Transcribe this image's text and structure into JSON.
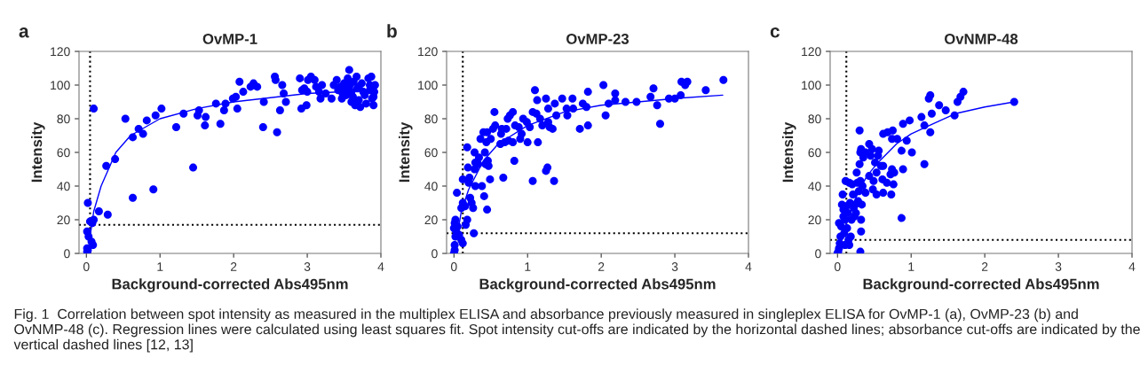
{
  "chart_data": [
    {
      "type": "scatter",
      "title": "OvMP-1",
      "xlabel": "Background-corrected Abs495nm",
      "ylabel": "Intensity",
      "annotations": [
        "a",
        "Fig. 1  Correlation between spot intensity as measured in the multiplex ELISA and absorbance previously measured in singleplex ELISA for OvMP-1 (a), OvMP-23 (b) and OvNMP-48 (c). Regression lines were calculated using least squares fit. Spot intensity cut-offs are indicated by the horizontal dashed lines; absorbance cut-offs are indicated by the vertical dashed lines [12, 13]"
      ],
      "xlim": [
        -0.1,
        4
      ],
      "ylim": [
        0,
        120
      ],
      "xticks": [
        0,
        1,
        2,
        3,
        4
      ],
      "yticks": [
        0,
        20,
        40,
        60,
        80,
        100,
        120
      ],
      "grid": false,
      "legend": false,
      "marker": "circle",
      "ref_lines": [
        {
          "axis": "x",
          "value": 0.05,
          "color": "#000000",
          "line_style": "dotted"
        },
        {
          "axis": "y",
          "value": 17,
          "color": "#000000",
          "line_style": "dotted"
        }
      ],
      "series": [
        {
          "color": "#0000ff",
          "x": [
            0.02,
            0.01,
            0.03,
            0.05,
            0.08,
            0.1,
            0.1,
            0.07,
            0.09,
            0.01,
            0.01,
            0.02,
            0.17,
            0.27,
            0.29,
            0.39,
            0.53,
            0.63,
            0.63,
            0.71,
            0.77,
            0.82,
            0.91,
            0.94,
            1.02,
            1.22,
            1.32,
            1.45,
            1.51,
            1.53,
            1.61,
            1.62,
            1.76,
            1.82,
            1.87,
            1.89,
            1.99,
            2.03,
            2.05,
            2.08,
            2.13,
            2.23,
            2.27,
            2.32,
            2.4,
            2.41,
            2.56,
            2.57,
            2.59,
            2.63,
            2.66,
            2.68,
            2.71,
            2.9,
            2.92,
            2.93,
            2.96,
            2.99,
            3.0,
            3.01,
            3.05,
            3.1,
            3.12,
            3.16,
            3.18,
            3.2,
            3.25,
            3.33,
            3.36,
            3.4,
            3.42,
            3.45,
            3.48,
            3.5,
            3.52,
            3.55,
            3.57,
            3.58,
            3.6,
            3.62,
            3.63,
            3.65,
            3.67,
            3.7,
            3.72,
            3.74,
            3.76,
            3.78,
            3.8,
            3.83,
            3.85,
            3.87,
            3.88,
            3.9,
            3.91,
            3.92,
            3.9,
            3.47,
            3.53,
            3.6,
            3.68,
            3.7,
            3.85
          ],
          "values": [
            30,
            13,
            10,
            19,
            18,
            20,
            86,
            7,
            5,
            3,
            1,
            2,
            25,
            52,
            23,
            56,
            80,
            69,
            33,
            74,
            71,
            79,
            38,
            82,
            86,
            75,
            83,
            51,
            82,
            85,
            76,
            81,
            89,
            77,
            85,
            89,
            92,
            93,
            86,
            102,
            96,
            99,
            101,
            99,
            75,
            90,
            105,
            103,
            72,
            85,
            100,
            95,
            90,
            104,
            86,
            97,
            98,
            88,
            96,
            103,
            105,
            103,
            99,
            96,
            92,
            100,
            95,
            92,
            100,
            103,
            97,
            99,
            95,
            101,
            98,
            104,
            109,
            100,
            96,
            93,
            102,
            88,
            105,
            99,
            87,
            101,
            96,
            94,
            89,
            104,
            97,
            105,
            92,
            88,
            96,
            100,
            93,
            92,
            94,
            90,
            98,
            91,
            100
          ]
        },
        {
          "type": "line",
          "color": "#0000ff",
          "marker": "none",
          "line_style": "solid",
          "x": [
            0.05,
            0.1,
            0.2,
            0.4,
            0.6,
            1,
            1.5,
            2,
            3,
            3.9
          ],
          "values": [
            10,
            25,
            40,
            60,
            70,
            80,
            86,
            90,
            95,
            97
          ]
        }
      ]
    },
    {
      "type": "scatter",
      "title": "OvMP-23",
      "xlabel": "Background-corrected Abs495nm",
      "ylabel": "Intensity",
      "annotations": [
        "b"
      ],
      "xlim": [
        -0.1,
        4
      ],
      "ylim": [
        0,
        120
      ],
      "xticks": [
        0,
        1,
        2,
        3,
        4
      ],
      "yticks": [
        0,
        20,
        40,
        60,
        80,
        100,
        120
      ],
      "grid": false,
      "legend": false,
      "marker": "circle",
      "ref_lines": [
        {
          "axis": "x",
          "value": 0.12,
          "color": "#000000",
          "line_style": "dotted"
        },
        {
          "axis": "y",
          "value": 12,
          "color": "#000000",
          "line_style": "dotted"
        }
      ],
      "series": [
        {
          "color": "#0000ff",
          "x": [
            0,
            0.01,
            0.01,
            0.02,
            0,
            0.01,
            0.02,
            0.03,
            0.05,
            0.07,
            0.1,
            0.12,
            0.04,
            0.1,
            0.12,
            0.12,
            0.15,
            0.16,
            0.18,
            0.18,
            0.19,
            0.2,
            0.21,
            0.22,
            0.24,
            0.26,
            0.27,
            0.28,
            0.28,
            0.29,
            0.29,
            0.33,
            0.34,
            0.36,
            0.38,
            0.4,
            0.41,
            0.42,
            0.43,
            0.44,
            0.45,
            0.45,
            0.46,
            0.47,
            0.49,
            0.5,
            0.53,
            0.55,
            0.56,
            0.63,
            0.64,
            0.65,
            0.67,
            0.69,
            0.71,
            0.73,
            0.74,
            0.76,
            0.8,
            0.8,
            0.82,
            0.83,
            0.88,
            0.9,
            0.92,
            0.94,
            0.99,
            1.0,
            1.03,
            1.07,
            1.07,
            1.1,
            1.12,
            1.13,
            1.14,
            1.17,
            1.2,
            1.25,
            1.25,
            1.27,
            1.28,
            1.28,
            1.3,
            1.34,
            1.36,
            1.37,
            1.39,
            1.47,
            1.53,
            1.54,
            1.61,
            1.62,
            1.71,
            1.75,
            1.8,
            1.82,
            1.82,
            2.03,
            2.06,
            2.1,
            2.19,
            2.19,
            2.33,
            2.48,
            2.67,
            2.71,
            2.76,
            2.8,
            2.92,
            3.0,
            3.08,
            3.09,
            3.14,
            3.17,
            3.42,
            3.66
          ],
          "values": [
            0,
            2,
            5,
            10,
            15,
            18,
            20,
            13,
            16,
            11,
            8,
            6,
            36,
            27,
            30,
            44,
            28,
            17,
            63,
            20,
            51,
            42,
            45,
            33,
            30,
            27,
            12,
            50,
            60,
            54,
            40,
            53,
            57,
            68,
            40,
            72,
            34,
            60,
            53,
            66,
            72,
            26,
            55,
            52,
            44,
            68,
            74,
            84,
            76,
            65,
            71,
            74,
            45,
            66,
            74,
            80,
            67,
            82,
            84,
            66,
            55,
            76,
            75,
            68,
            71,
            80,
            78,
            66,
            75,
            43,
            84,
            97,
            83,
            91,
            66,
            80,
            76,
            92,
            49,
            51,
            86,
            78,
            75,
            74,
            43,
            89,
            82,
            92,
            86,
            82,
            92,
            86,
            74,
            89,
            87,
            96,
            76,
            100,
            82,
            89,
            91,
            95,
            90,
            90,
            93,
            98,
            88,
            77,
            92,
            92,
            94,
            102,
            100,
            102,
            97,
            103
          ]
        },
        {
          "type": "line",
          "color": "#0000ff",
          "marker": "none",
          "line_style": "solid",
          "x": [
            0.05,
            0.1,
            0.2,
            0.4,
            0.6,
            1,
            1.5,
            2,
            3,
            3.65
          ],
          "values": [
            12,
            25,
            38,
            55,
            65,
            76,
            84,
            88,
            92,
            94
          ]
        }
      ]
    },
    {
      "type": "scatter",
      "title": "OvNMP-48",
      "xlabel": "Background-corrected Abs495nm",
      "ylabel": "Intensity",
      "annotations": [
        "c"
      ],
      "xlim": [
        -0.1,
        4
      ],
      "ylim": [
        0,
        120
      ],
      "xticks": [
        0,
        1,
        2,
        3,
        4
      ],
      "yticks": [
        0,
        20,
        40,
        60,
        80,
        100,
        120
      ],
      "grid": false,
      "legend": false,
      "marker": "circle",
      "ref_lines": [
        {
          "axis": "x",
          "value": 0.12,
          "color": "#000000",
          "line_style": "dotted"
        },
        {
          "axis": "y",
          "value": 8,
          "color": "#000000",
          "line_style": "dotted"
        }
      ],
      "series": [
        {
          "color": "#0000ff",
          "x": [
            0,
            0.01,
            0.02,
            0.03,
            0.04,
            0.02,
            0.05,
            0.06,
            0.07,
            0.08,
            0.08,
            0.09,
            0.1,
            0.1,
            0.11,
            0.12,
            0.13,
            0.14,
            0.15,
            0.16,
            0.16,
            0.17,
            0.18,
            0.19,
            0.2,
            0.21,
            0.22,
            0.23,
            0.24,
            0.25,
            0.26,
            0.27,
            0.28,
            0.29,
            0.3,
            0.3,
            0.31,
            0.31,
            0.31,
            0.32,
            0.32,
            0.32,
            0.33,
            0.34,
            0.35,
            0.38,
            0.38,
            0.43,
            0.43,
            0.45,
            0.47,
            0.48,
            0.49,
            0.51,
            0.53,
            0.53,
            0.55,
            0.56,
            0.59,
            0.61,
            0.62,
            0.62,
            0.62,
            0.67,
            0.68,
            0.72,
            0.73,
            0.74,
            0.74,
            0.75,
            0.76,
            0.77,
            0.81,
            0.87,
            0.87,
            0.89,
            0.89,
            0.94,
            0.98,
            1.01,
            1.14,
            1.18,
            1.18,
            1.24,
            1.26,
            1.26,
            1.28,
            1.38,
            1.47,
            1.59,
            1.63,
            1.67,
            1.71,
            2.4
          ],
          "values": [
            0,
            1,
            3,
            6,
            10,
            18,
            16,
            29,
            35,
            22,
            26,
            12,
            20,
            5,
            43,
            28,
            15,
            24,
            8,
            42,
            5,
            30,
            10,
            20,
            41,
            35,
            27,
            22,
            29,
            24,
            48,
            42,
            31,
            37,
            73,
            53,
            1,
            43,
            60,
            62,
            20,
            13,
            29,
            40,
            57,
            60,
            36,
            65,
            46,
            58,
            62,
            38,
            43,
            54,
            35,
            48,
            58,
            61,
            52,
            44,
            36,
            52,
            71,
            42,
            72,
            47,
            35,
            68,
            50,
            73,
            41,
            48,
            68,
            61,
            21,
            50,
            77,
            67,
            79,
            60,
            81,
            76,
            53,
            92,
            94,
            72,
            83,
            88,
            85,
            82,
            90,
            93,
            96,
            90
          ]
        },
        {
          "type": "line",
          "color": "#0000ff",
          "marker": "none",
          "line_style": "solid",
          "x": [
            0.1,
            0.2,
            0.3,
            0.4,
            0.55,
            0.8,
            1,
            1.3,
            1.6,
            2,
            2.4
          ],
          "values": [
            15,
            28,
            38,
            46,
            54,
            65,
            71,
            77,
            83,
            87,
            90
          ]
        }
      ]
    }
  ]
}
